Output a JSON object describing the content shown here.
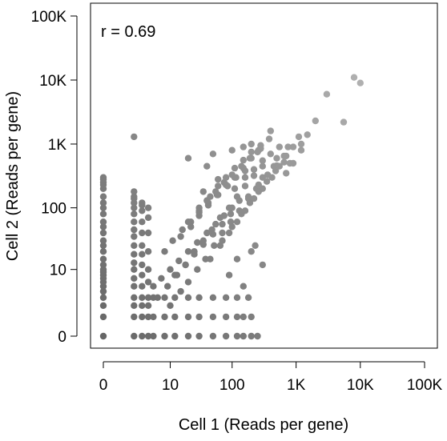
{
  "chart_data": {
    "type": "scatter",
    "title": "",
    "annotation": "r = 0.69",
    "xlabel": "Cell 1 (Reads per gene)",
    "ylabel": "Cell 2 (Reads per gene)",
    "x_scale": "log1p",
    "y_scale": "log1p",
    "xlim": [
      0,
      100000
    ],
    "ylim": [
      0,
      100000
    ],
    "x_ticks": [
      0,
      10,
      100,
      1000,
      10000,
      100000
    ],
    "x_tick_labels": [
      "0",
      "10",
      "100",
      "1K",
      "10K",
      "100K"
    ],
    "y_ticks": [
      0,
      10,
      100,
      1000,
      10000,
      100000
    ],
    "y_tick_labels": [
      "0",
      "10",
      "100",
      "1K",
      "10K",
      "100K"
    ],
    "grid": false,
    "legend": "none",
    "colors": {
      "point_dark": "#666666",
      "point_light": "#b0b0b0",
      "frame": "#000000"
    },
    "series": [
      {
        "x": [
          0,
          0,
          0,
          0,
          0,
          0,
          0,
          0,
          0,
          0,
          0,
          0,
          0,
          0,
          0,
          0,
          0,
          0,
          0,
          0,
          0,
          0,
          0,
          0,
          0,
          0,
          0,
          0,
          2,
          2,
          2,
          2,
          2,
          2,
          2,
          2,
          2,
          2,
          2,
          2,
          2,
          2,
          2,
          2,
          2,
          2,
          2,
          3,
          3,
          3,
          3,
          3,
          3,
          3,
          3,
          3,
          3,
          3,
          3,
          3,
          3,
          4,
          4,
          4,
          4,
          4,
          4,
          4,
          4,
          4,
          4,
          2,
          5,
          8,
          12,
          20,
          30,
          50,
          80,
          120,
          150,
          200,
          250,
          5,
          8,
          12,
          20,
          30,
          50,
          80,
          120,
          150,
          200,
          5,
          8,
          12,
          20,
          30,
          50,
          80,
          120,
          5,
          7,
          10,
          14,
          20,
          28,
          40,
          55,
          75,
          100,
          130,
          6,
          9,
          13,
          18,
          25,
          35,
          50,
          70,
          95,
          8,
          11,
          16,
          22,
          30,
          42,
          60,
          85,
          115,
          160,
          10,
          15,
          20,
          28,
          38,
          52,
          70,
          95,
          130,
          180,
          240,
          12,
          18,
          25,
          35,
          48,
          65,
          90,
          120,
          160,
          220,
          300,
          15,
          22,
          30,
          42,
          58,
          80,
          110,
          150,
          200,
          280,
          20,
          30,
          40,
          55,
          75,
          100,
          140,
          190,
          260,
          30,
          45,
          60,
          80,
          110,
          150,
          200,
          280,
          380,
          45,
          65,
          90,
          120,
          160,
          220,
          300,
          420,
          70,
          100,
          140,
          190,
          260,
          350,
          480,
          650,
          110,
          160,
          220,
          300,
          400,
          550,
          180,
          260,
          360,
          500,
          700,
          300,
          450,
          650,
          900,
          500,
          750,
          1100,
          800,
          1200,
          1500,
          2000,
          3000,
          5500,
          8000,
          10000,
          20,
          50,
          100,
          150,
          200,
          250,
          120,
          90,
          200,
          300,
          150,
          180,
          230,
          60,
          40,
          35,
          400,
          550,
          700,
          900,
          1200
        ],
        "y": [
          0,
          1,
          2,
          3,
          4,
          5,
          6,
          7,
          8,
          9,
          10,
          12,
          15,
          20,
          25,
          30,
          40,
          50,
          60,
          80,
          100,
          120,
          150,
          200,
          230,
          250,
          280,
          300,
          0,
          1,
          2,
          3,
          5,
          7,
          10,
          13,
          18,
          25,
          35,
          45,
          60,
          80,
          100,
          120,
          150,
          180,
          140,
          0,
          1,
          2,
          3,
          5,
          8,
          12,
          18,
          25,
          40,
          60,
          90,
          120,
          110,
          0,
          1,
          2,
          3,
          6,
          10,
          20,
          40,
          70,
          100,
          1300,
          0,
          0,
          0,
          0,
          0,
          0,
          0,
          0,
          0,
          0,
          0,
          1,
          1,
          1,
          1,
          1,
          1,
          1,
          1,
          1,
          1,
          3,
          3,
          3,
          3,
          3,
          3,
          3,
          3,
          5,
          7,
          10,
          14,
          20,
          28,
          40,
          55,
          75,
          100,
          130,
          3,
          5,
          8,
          12,
          18,
          26,
          38,
          55,
          80,
          20,
          30,
          45,
          60,
          85,
          120,
          160,
          220,
          300,
          380,
          2,
          4,
          6,
          10,
          15,
          25,
          40,
          60,
          90,
          140,
          200,
          8,
          12,
          20,
          30,
          45,
          70,
          100,
          150,
          220,
          320,
          450,
          35,
          50,
          75,
          110,
          160,
          230,
          300,
          420,
          600,
          850,
          60,
          90,
          130,
          180,
          250,
          330,
          450,
          600,
          800,
          100,
          150,
          220,
          300,
          420,
          560,
          750,
          950,
          1200,
          15,
          25,
          40,
          60,
          90,
          140,
          200,
          300,
          30,
          50,
          80,
          120,
          180,
          260,
          380,
          520,
          200,
          300,
          400,
          550,
          700,
          900,
          150,
          230,
          330,
          460,
          650,
          300,
          450,
          650,
          900,
          600,
          900,
          1300,
          500,
          800,
          1400,
          2300,
          6000,
          2200,
          11000,
          9000,
          600,
          700,
          800,
          900,
          1000,
          750,
          15,
          8,
          20,
          12,
          5,
          3,
          25,
          280,
          450,
          180,
          1600,
          450,
          350,
          500,
          1000
        ]
      }
    ]
  }
}
